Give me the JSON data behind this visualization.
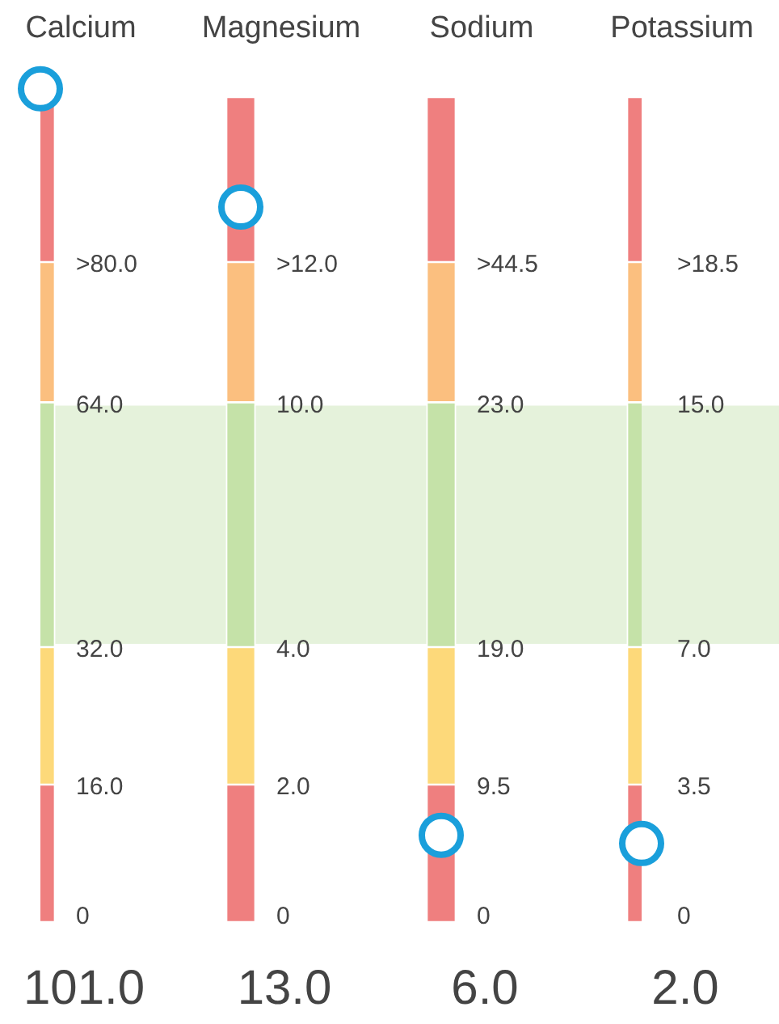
{
  "chart_data": {
    "type": "other",
    "categories": [
      "Calcium",
      "Magnesium",
      "Sodium",
      "Potassium"
    ],
    "values": [
      101.0,
      13.0,
      6.0,
      2.0
    ],
    "value_labels": [
      "101.0",
      "13.0",
      "6.0",
      "2.0"
    ],
    "color": "#1a9fdb",
    "series": [
      {
        "color": "#ef7f7f",
        "values": [
          0,
          0,
          0,
          0
        ],
        "value_labels": [
          "0",
          "0",
          "0",
          "0"
        ]
      },
      {
        "color": "#fdd97a",
        "values": [
          16.0,
          2.0,
          9.5,
          3.5
        ],
        "value_labels": [
          "16.0",
          "2.0",
          "9.5",
          "3.5"
        ]
      },
      {
        "color": "#c5e2a8",
        "values": [
          32.0,
          4.0,
          19.0,
          7.0
        ],
        "value_labels": [
          "32.0",
          "4.0",
          "19.0",
          "7.0"
        ]
      },
      {
        "color": "#fbbf7f",
        "values": [
          64.0,
          10.0,
          23.0,
          15.0
        ],
        "value_labels": [
          "64.0",
          "10.0",
          "23.0",
          "15.0"
        ]
      },
      {
        "color": "#ef7f7f",
        "values": [
          80.0,
          12.0,
          44.5,
          18.5
        ],
        "value_labels": [
          ">80.0",
          ">12.0",
          ">44.5",
          ">18.5"
        ]
      }
    ]
  }
}
